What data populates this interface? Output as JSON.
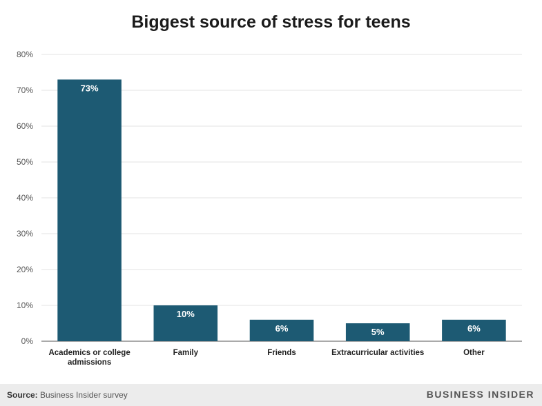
{
  "chart_data": {
    "type": "bar",
    "title": "Biggest source of stress for teens",
    "categories": [
      "Academics or college admissions",
      "Family",
      "Friends",
      "Extracurricular activities",
      "Other"
    ],
    "category_lines": [
      [
        "Academics or college",
        "admissions"
      ],
      [
        "Family"
      ],
      [
        "Friends"
      ],
      [
        "Extracurricular activities"
      ],
      [
        "Other"
      ]
    ],
    "values": [
      73,
      10,
      6,
      5,
      6
    ],
    "data_labels": [
      "73%",
      "10%",
      "6%",
      "5%",
      "6%"
    ],
    "yticks": [
      0,
      10,
      20,
      30,
      40,
      50,
      60,
      70,
      80
    ],
    "ytick_labels": [
      "0%",
      "10%",
      "20%",
      "30%",
      "40%",
      "50%",
      "60%",
      "70%",
      "80%"
    ],
    "ylim": [
      0,
      80
    ],
    "grid": true,
    "bar_color": "#1d5a73"
  },
  "footer": {
    "source_label": "Source:",
    "source_text": "Business Insider survey",
    "brand": "BUSINESS INSIDER"
  }
}
